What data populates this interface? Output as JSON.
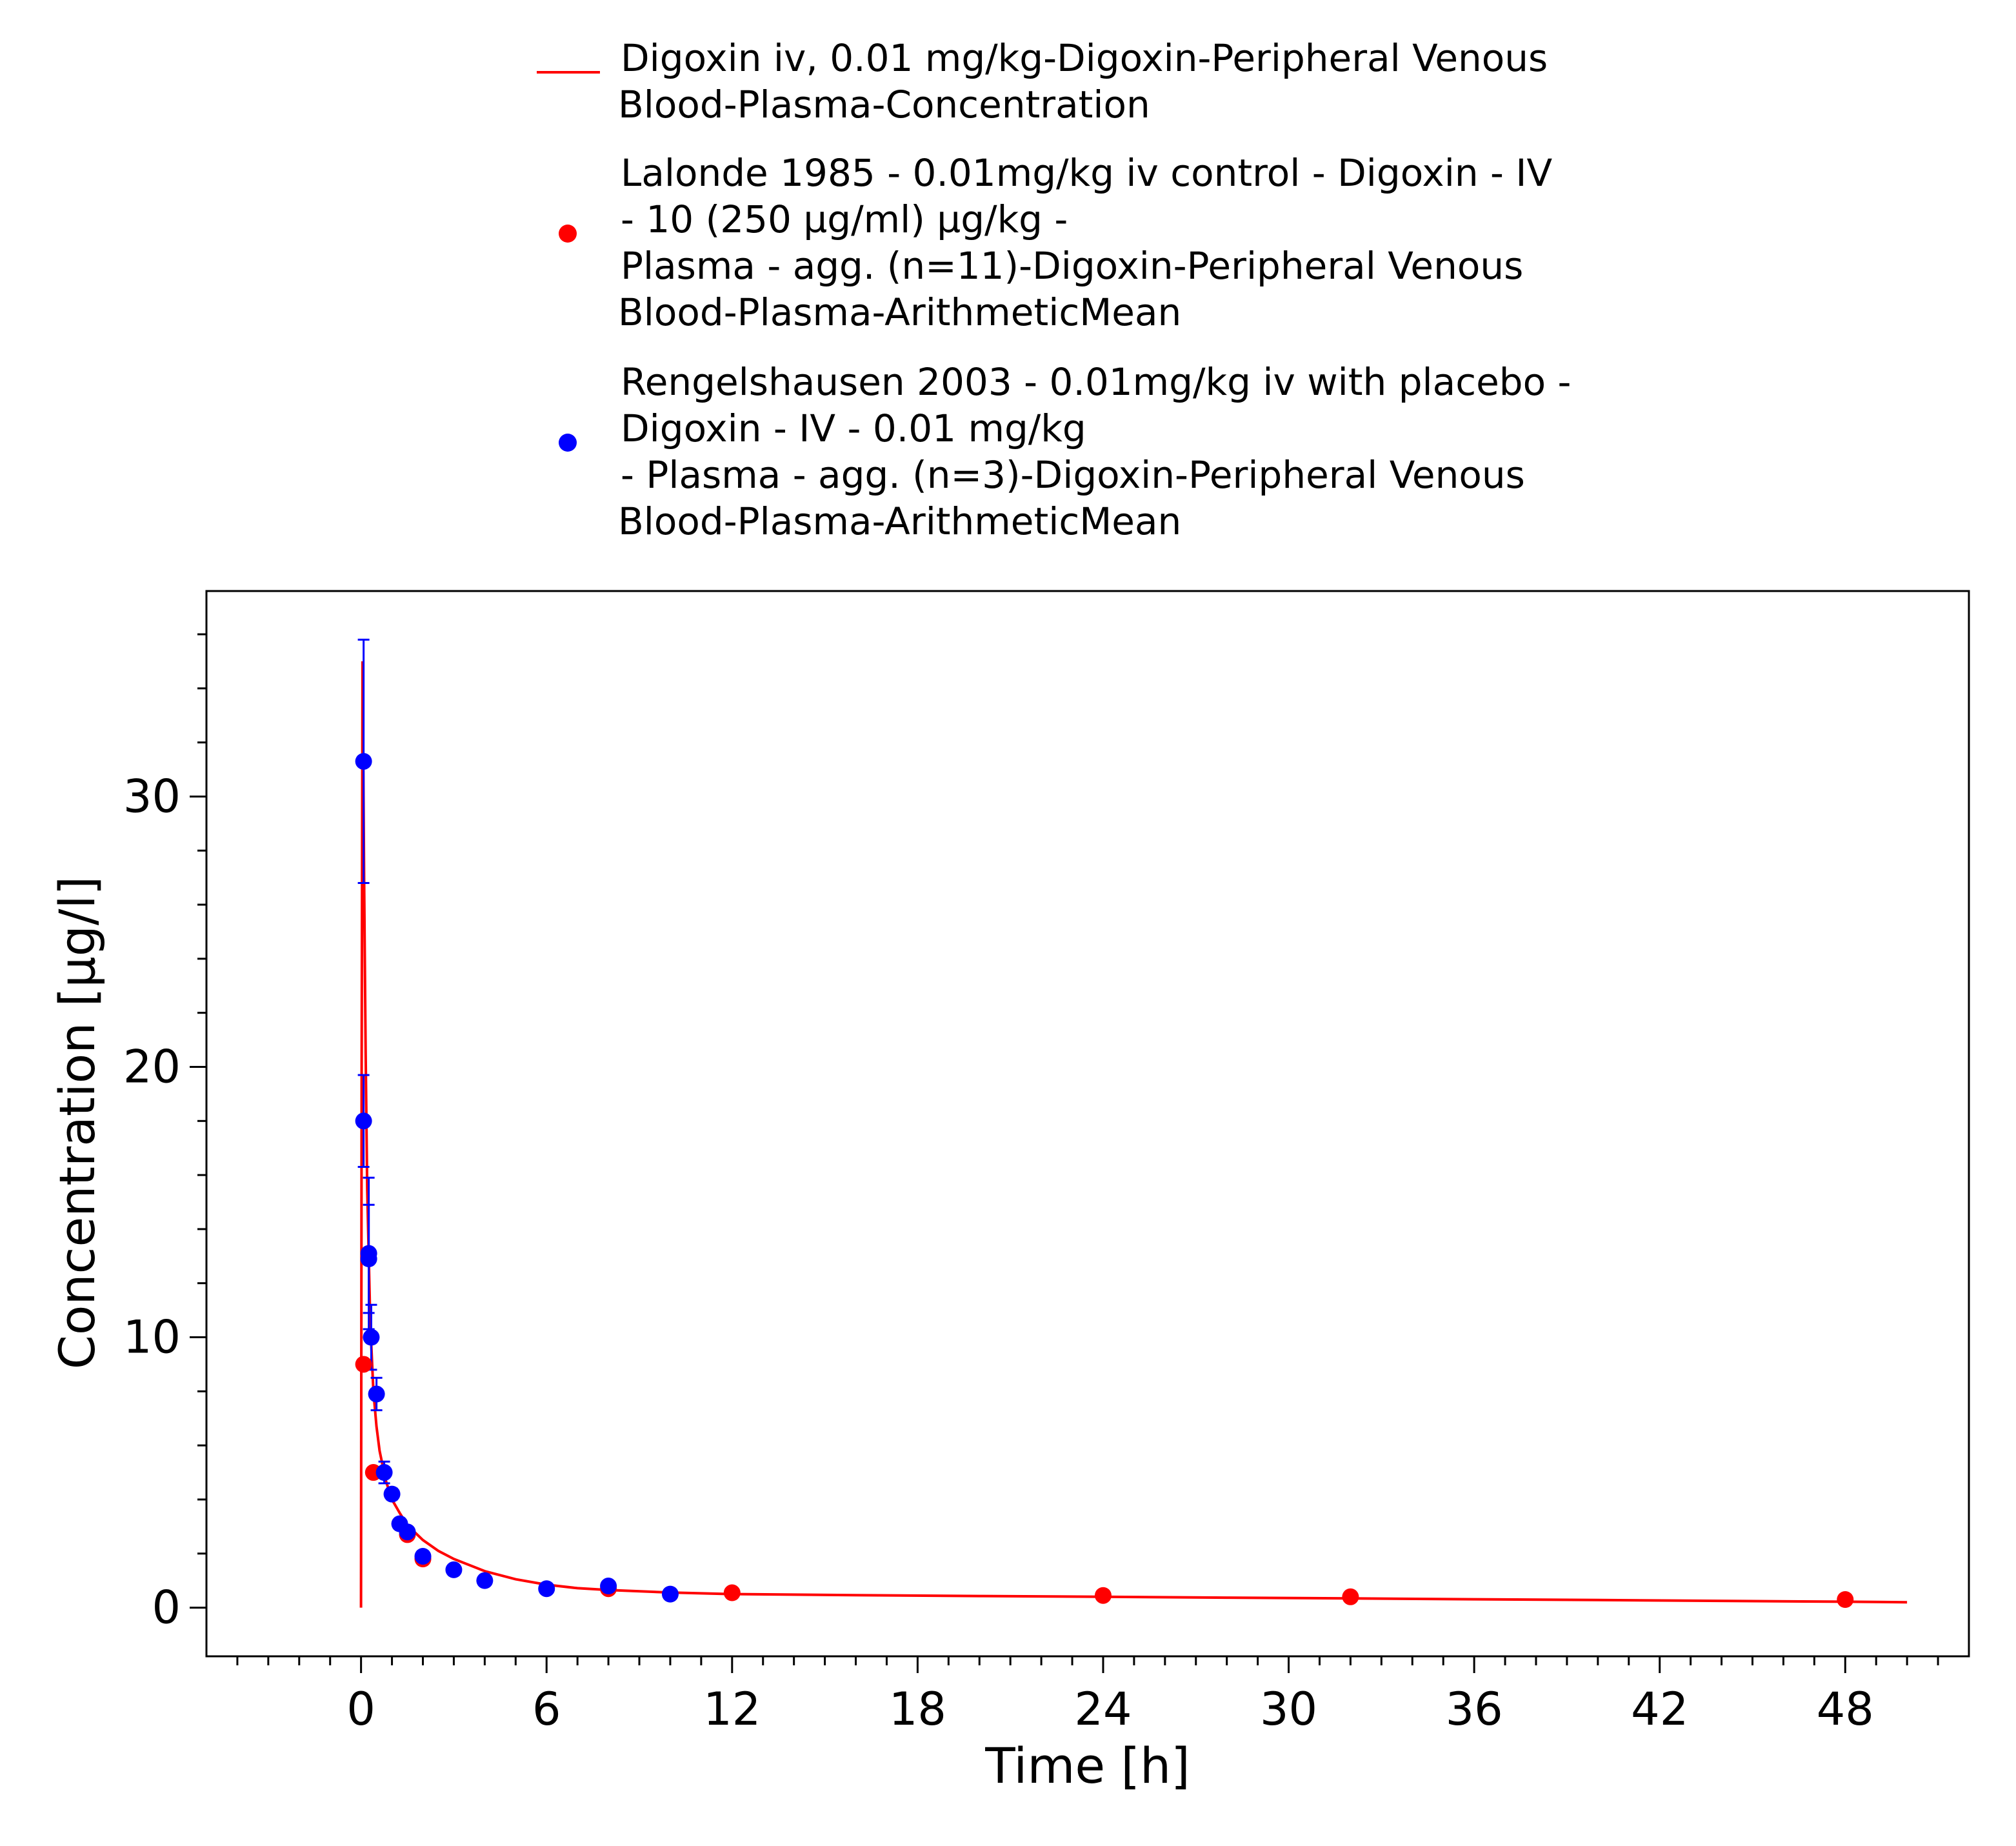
{
  "chart_data": {
    "type": "scatter",
    "xlabel": "Time [h]",
    "ylabel": "Concentration [µg/l]",
    "xlim": [
      -5,
      52
    ],
    "ylim": [
      -1.8,
      37.6
    ],
    "x_ticks": [
      "0",
      "6",
      "12",
      "18",
      "24",
      "30",
      "36",
      "42",
      "48"
    ],
    "y_ticks": [
      "0",
      "10",
      "20",
      "30"
    ],
    "grid": false,
    "legend_position": "top",
    "series": [
      {
        "name_lines": [
          "Digoxin iv, 0.01 mg/kg-Digoxin-Peripheral Venous",
          "Blood-Plasma-Concentration"
        ],
        "kind": "line",
        "color": "#ff0000",
        "x": [
          0,
          0.02,
          0.05,
          0.08,
          0.1,
          0.15,
          0.2,
          0.3,
          0.4,
          0.5,
          0.6,
          0.8,
          1.0,
          1.25,
          1.5,
          2.0,
          2.5,
          3,
          4,
          5,
          6,
          7,
          8,
          10,
          12,
          16,
          20,
          24,
          28,
          32,
          36,
          40,
          44,
          48,
          50
        ],
        "y": [
          0,
          20.0,
          35.0,
          30.0,
          27.0,
          20.5,
          15.5,
          10.5,
          8.0,
          6.7,
          5.8,
          4.7,
          4.0,
          3.5,
          3.05,
          2.5,
          2.1,
          1.8,
          1.35,
          1.05,
          0.85,
          0.72,
          0.65,
          0.56,
          0.5,
          0.46,
          0.43,
          0.4,
          0.37,
          0.34,
          0.31,
          0.28,
          0.25,
          0.22,
          0.2
        ]
      },
      {
        "name_lines": [
          "Lalonde 1985 - 0.01mg/kg iv control - Digoxin - IV",
          "- 10 (250 µg/ml) µg/kg -",
          "Plasma - agg. (n=11)-Digoxin-Peripheral Venous",
          "Blood-Plasma-ArithmeticMean"
        ],
        "kind": "scatter",
        "color": "#ff0000",
        "x": [
          0.083,
          0.4,
          1.5,
          2.0,
          8.0,
          12.0,
          24.0,
          32.0,
          48.0
        ],
        "y": [
          9.0,
          5.0,
          2.7,
          1.8,
          0.7,
          0.55,
          0.45,
          0.4,
          0.3
        ]
      },
      {
        "name_lines": [
          "Rengelshausen 2003 - 0.01mg/kg iv with placebo -",
          "Digoxin - IV - 0.01 mg/kg",
          "- Plasma - agg. (n=3)-Digoxin-Peripheral Venous",
          "Blood-Plasma-ArithmeticMean"
        ],
        "kind": "scatter",
        "color": "#0000ff",
        "x": [
          0.083,
          0.083,
          0.25,
          0.25,
          0.33,
          0.5,
          0.75,
          1.0,
          1.25,
          1.5,
          2.0,
          3.0,
          4.0,
          6.0,
          8.0,
          10.0
        ],
        "y": [
          31.3,
          18.0,
          12.9,
          13.1,
          10.0,
          7.9,
          5.0,
          4.2,
          3.1,
          2.8,
          1.9,
          1.4,
          1.0,
          0.7,
          0.8,
          0.5
        ],
        "error": [
          4.5,
          1.7,
          2.0,
          2.8,
          1.2,
          0.6,
          0.4,
          0.2,
          0.1,
          0.1,
          0.1,
          0.05,
          0.05,
          0.05,
          0.05,
          0.05
        ]
      }
    ]
  }
}
